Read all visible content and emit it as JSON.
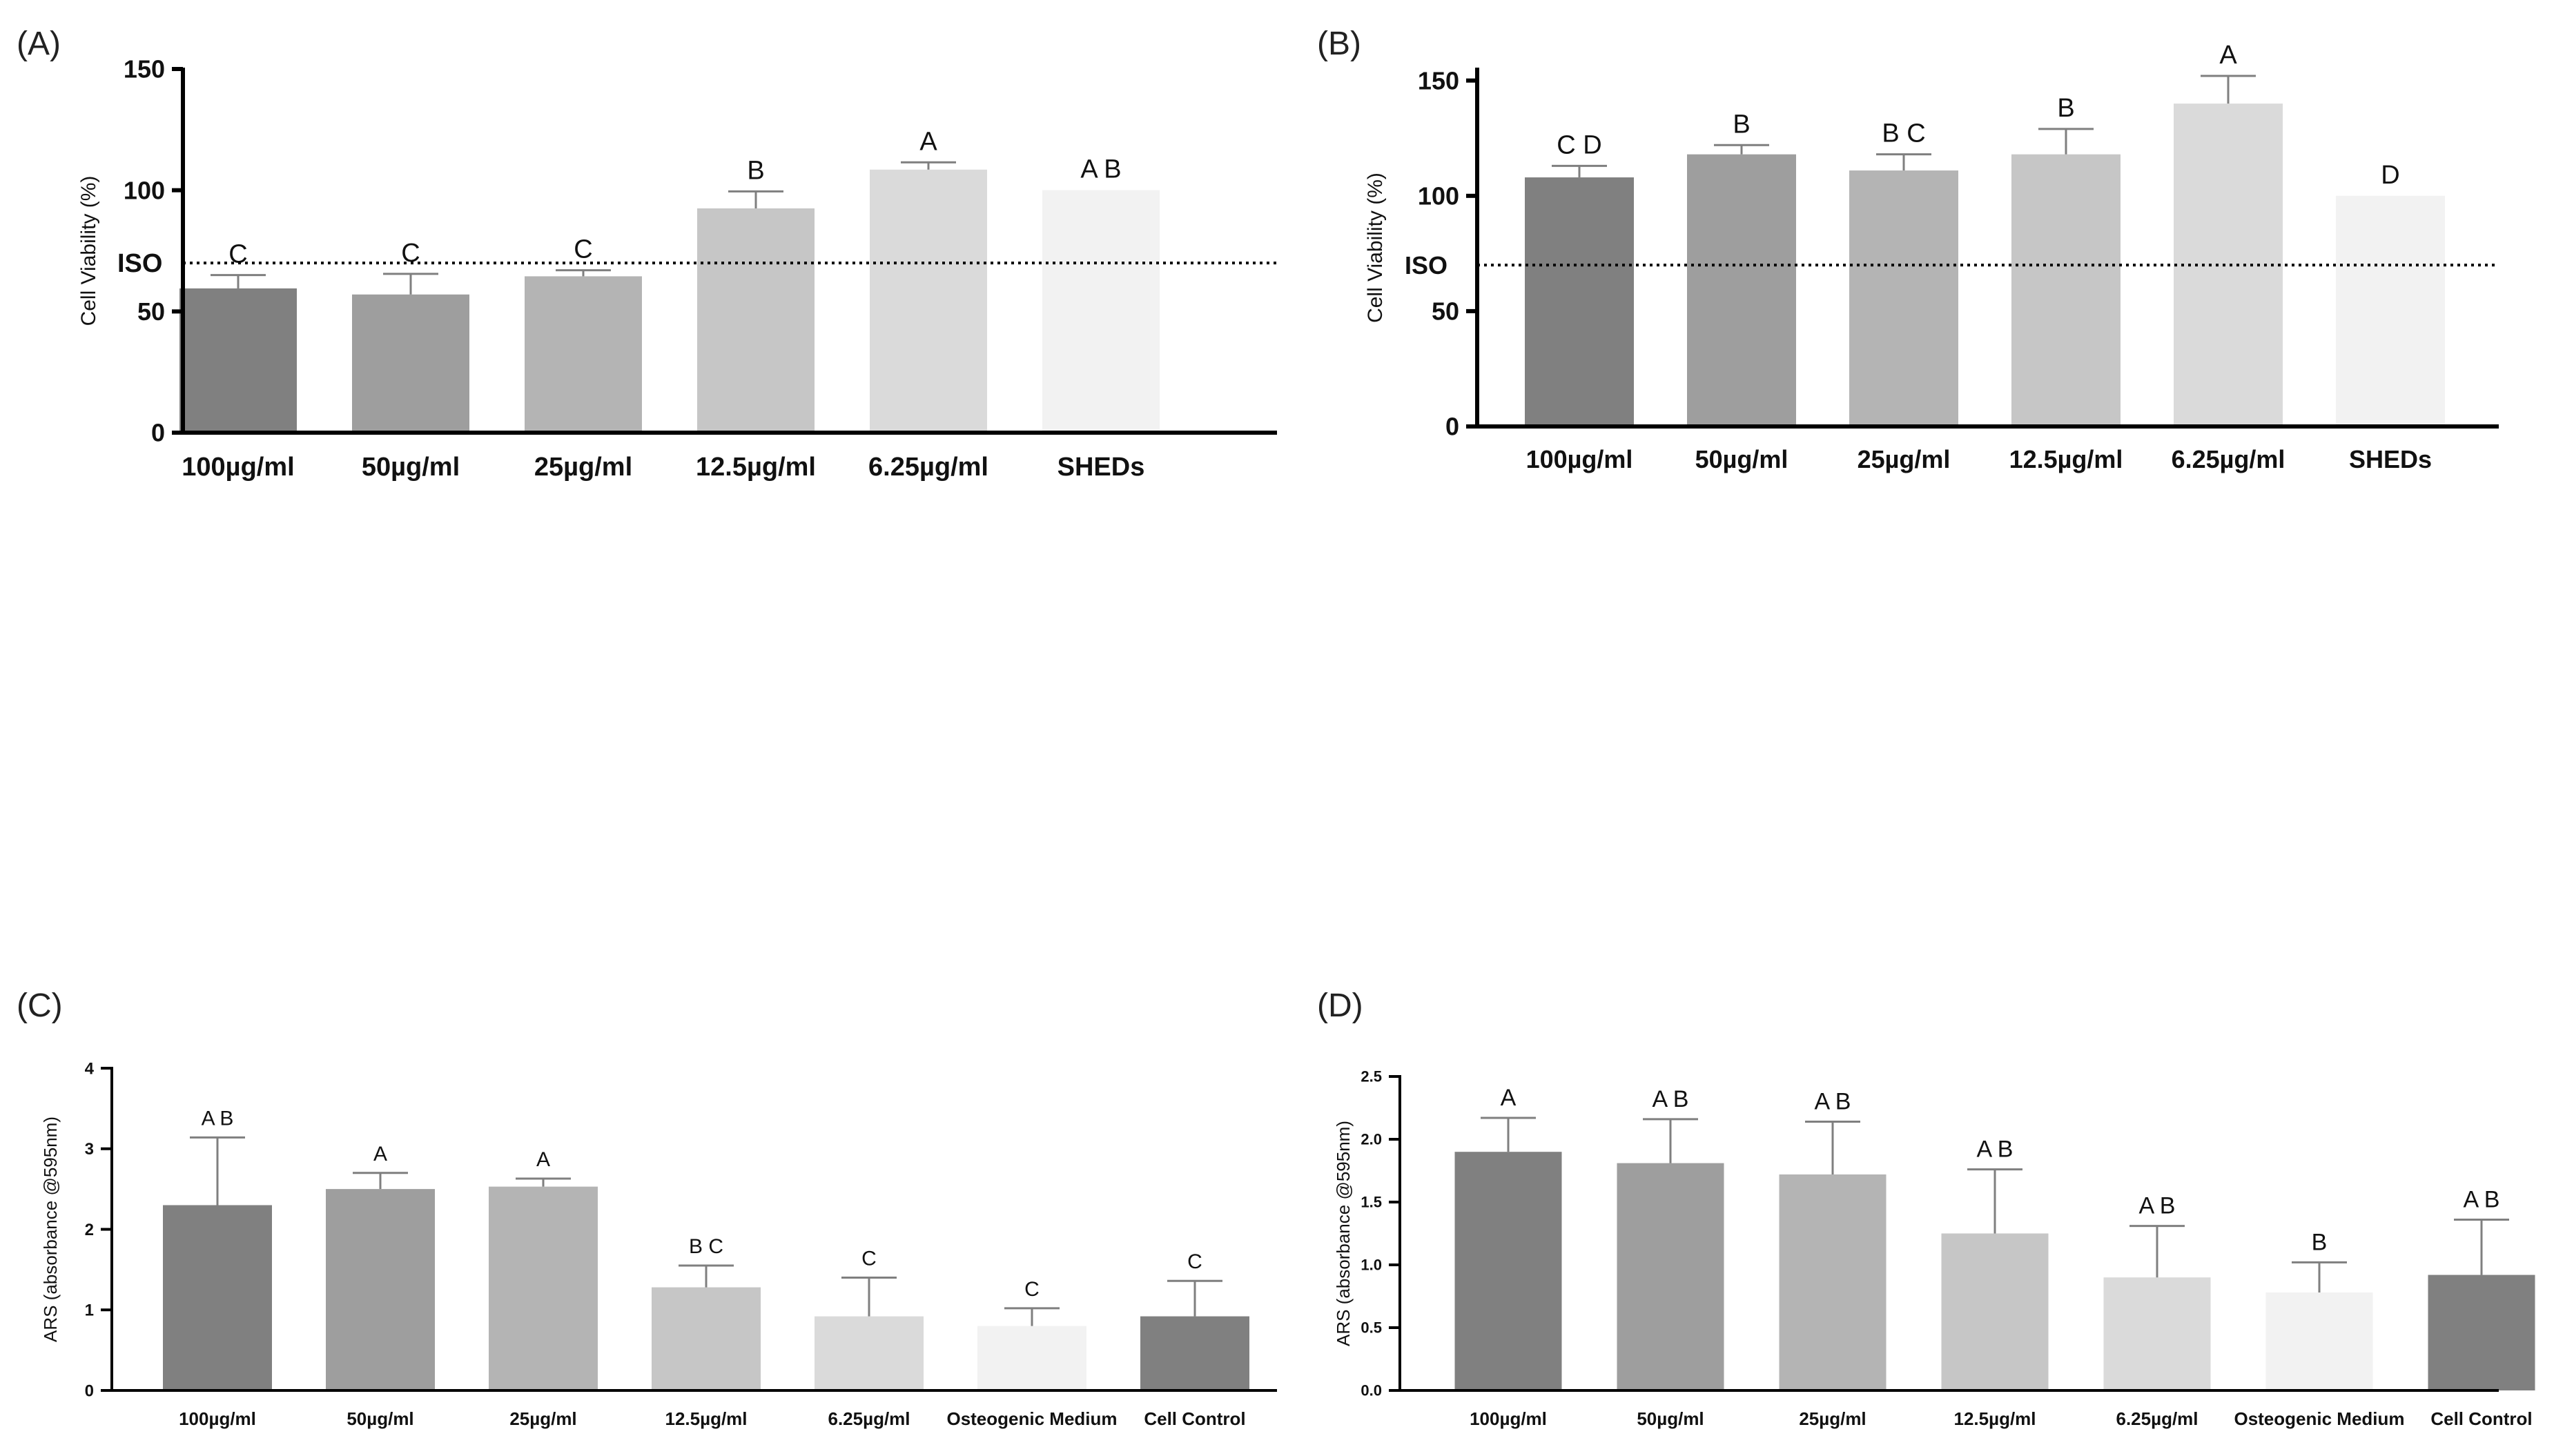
{
  "colors": {
    "bar_shades": [
      "#808080",
      "#9e9e9e",
      "#b4b4b4",
      "#c6c6c6",
      "#dadada",
      "#f2f2f2",
      "#808080"
    ],
    "axis": "#000000",
    "error_bar": "#7f7f7f",
    "text": "#111111"
  },
  "chart_data": [
    {
      "panel": "(A)",
      "type": "bar",
      "categories": [
        "100µg/ml",
        "50µg/ml",
        "25µg/ml",
        "12.5µg/ml",
        "6.25µg/ml",
        "SHEDs"
      ],
      "values": [
        59.5,
        57,
        64.5,
        92.5,
        108.5,
        100
      ],
      "errors": [
        5.5,
        8.5,
        2.5,
        7,
        3,
        0
      ],
      "letters": [
        "C",
        "C",
        "C",
        "B",
        "A",
        "A B"
      ],
      "ylabel": "Cell Viability (%)",
      "ylim": [
        0,
        150
      ],
      "yticks": [
        "0",
        "50",
        "100",
        "150"
      ],
      "yticks_values": [
        0,
        50,
        100,
        150
      ],
      "reference_line": {
        "label": "ISO",
        "value": 70
      }
    },
    {
      "panel": "(B)",
      "type": "bar",
      "categories": [
        "100µg/ml",
        "50µg/ml",
        "25µg/ml",
        "12.5µg/ml",
        "6.25µg/ml",
        "SHEDs"
      ],
      "values": [
        108,
        118,
        111,
        118,
        140,
        100
      ],
      "errors": [
        5,
        4,
        7,
        11,
        12,
        0
      ],
      "letters": [
        "C D",
        "B",
        "B C",
        "B",
        "A",
        "D"
      ],
      "ylabel": "Cell Viability (%)",
      "ylim": [
        0,
        155
      ],
      "yticks": [
        "0",
        "50",
        "100",
        "150"
      ],
      "yticks_values": [
        0,
        50,
        100,
        150
      ],
      "reference_line": {
        "label": "ISO",
        "value": 70
      }
    },
    {
      "panel": "(C)",
      "type": "bar",
      "categories": [
        "100µg/ml",
        "50µg/ml",
        "25µg/ml",
        "12.5µg/ml",
        "6.25µg/ml",
        "Osteogenic Medium",
        "Cell Control"
      ],
      "values": [
        2.3,
        2.5,
        2.53,
        1.28,
        0.92,
        0.8,
        0.92
      ],
      "errors": [
        0.84,
        0.2,
        0.1,
        0.27,
        0.48,
        0.22,
        0.44
      ],
      "letters": [
        "A B",
        "A",
        "A",
        "B C",
        "C",
        "C",
        "C"
      ],
      "ylabel": "ARS (absorbance @595nm)",
      "ylim": [
        0,
        4
      ],
      "yticks": [
        "0",
        "1",
        "2",
        "3",
        "4"
      ],
      "yticks_values": [
        0,
        1,
        2,
        3,
        4
      ]
    },
    {
      "panel": "(D)",
      "type": "bar",
      "categories": [
        "100µg/ml",
        "50µg/ml",
        "25µg/ml",
        "12.5µg/ml",
        "6.25µg/ml",
        "Osteogenic Medium",
        "Cell Control"
      ],
      "values": [
        1.9,
        1.81,
        1.72,
        1.25,
        0.9,
        0.78,
        0.92
      ],
      "errors": [
        0.27,
        0.35,
        0.42,
        0.51,
        0.41,
        0.24,
        0.44
      ],
      "letters": [
        "A",
        "A B",
        "A B",
        "A B",
        "A B",
        "B",
        "A B"
      ],
      "ylabel": "ARS (absorbance @595nm)",
      "ylim": [
        0,
        2.5
      ],
      "yticks": [
        "0.0",
        "0.5",
        "1.0",
        "1.5",
        "2.0",
        "2.5"
      ],
      "yticks_values": [
        0,
        0.5,
        1,
        1.5,
        2,
        2.5
      ]
    }
  ]
}
